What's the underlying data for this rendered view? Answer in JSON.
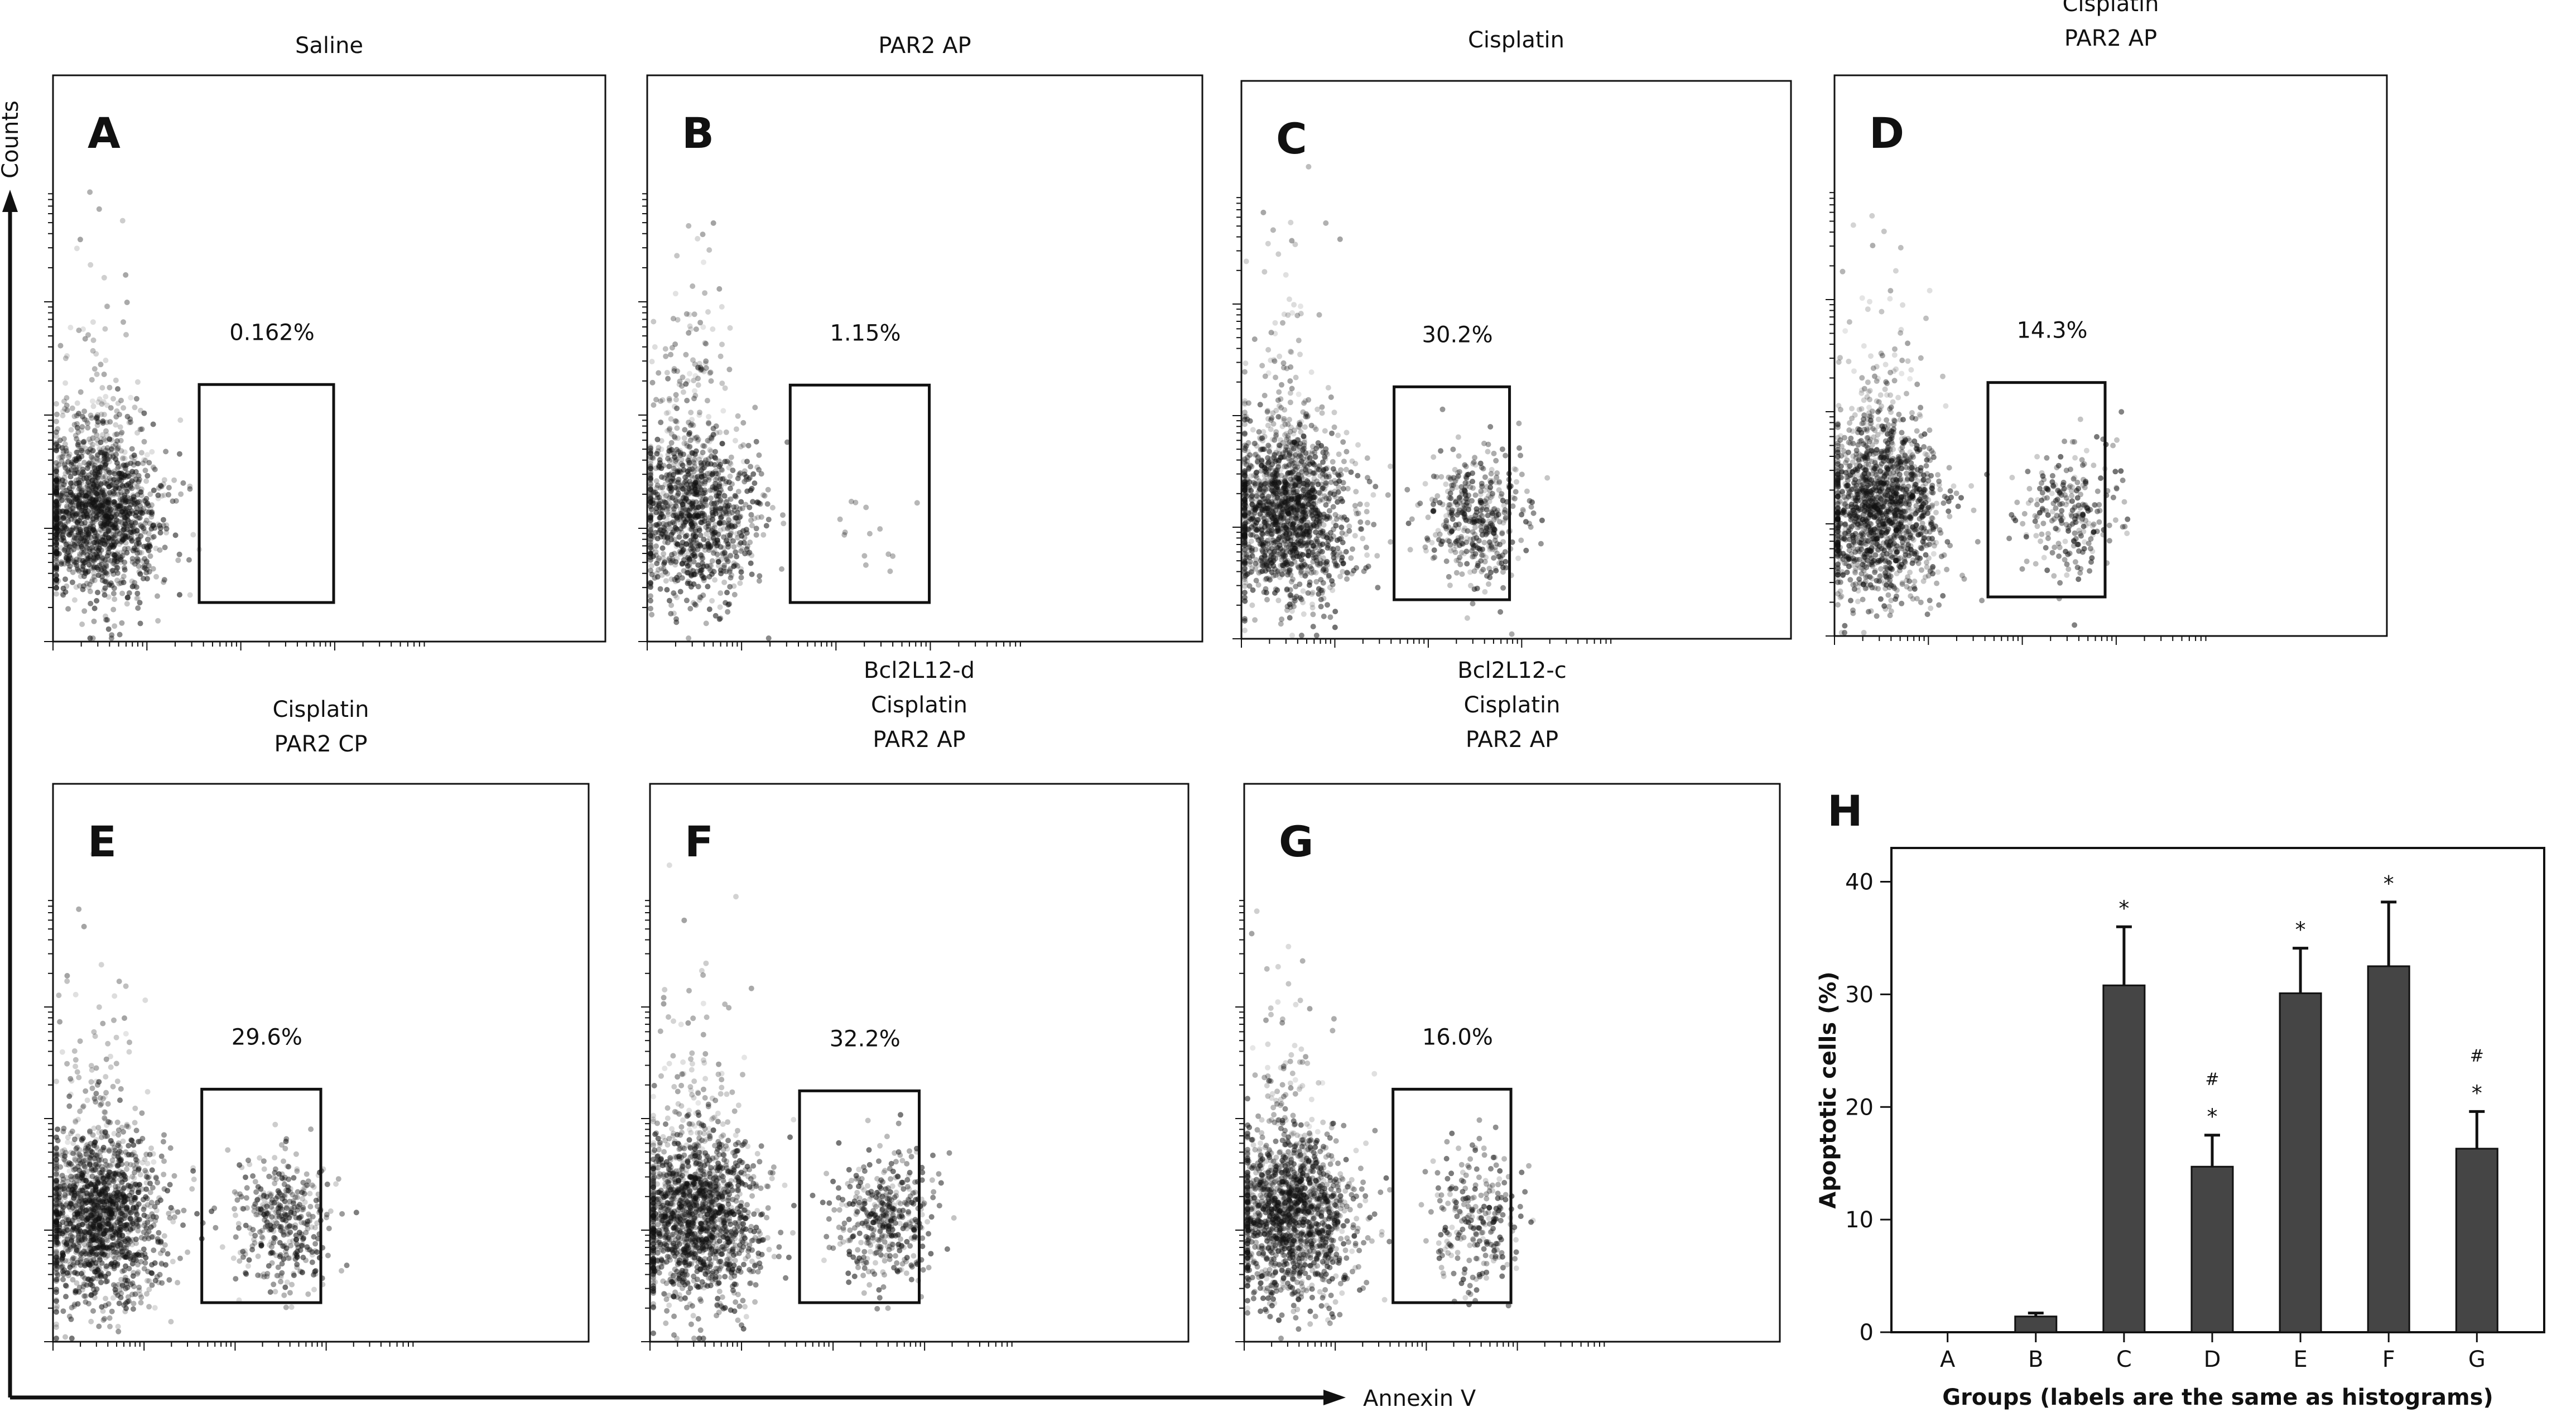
{
  "figure": {
    "axes": {
      "y_label": "Counts",
      "x_label": "Annexin V"
    }
  },
  "panels": [
    {
      "letter": "A",
      "conditions": [
        "Saline"
      ],
      "percent": "0.162%"
    },
    {
      "letter": "B",
      "conditions": [
        "PAR2 AP"
      ],
      "percent": "1.15%"
    },
    {
      "letter": "C",
      "conditions": [
        "Cisplatin"
      ],
      "percent": "30.2%"
    },
    {
      "letter": "D",
      "conditions": [
        "Cisplatin",
        "PAR2 AP"
      ],
      "percent": "14.3%"
    },
    {
      "letter": "E",
      "conditions": [
        "Cisplatin",
        "PAR2 CP"
      ],
      "percent": "29.6%"
    },
    {
      "letter": "F",
      "conditions": [
        "Bcl2L12-d",
        "Cisplatin",
        "PAR2 AP"
      ],
      "percent": "32.2%"
    },
    {
      "letter": "G",
      "conditions": [
        "Bcl2L12-c",
        "Cisplatin",
        "PAR2 AP"
      ],
      "percent": "16.0%"
    }
  ],
  "chart_data": {
    "type": "bar",
    "panel_letter": "H",
    "categories": [
      "A",
      "B",
      "C",
      "D",
      "E",
      "F",
      "G"
    ],
    "values": [
      0,
      1.4,
      30.8,
      14.7,
      30.1,
      32.5,
      16.3
    ],
    "errors": [
      0,
      0.3,
      5.2,
      2.8,
      4.0,
      5.7,
      3.3
    ],
    "significance_star": [
      "",
      "",
      "*",
      "*",
      "*",
      "*",
      "*"
    ],
    "significance_hash": [
      "",
      "",
      "",
      "#",
      "",
      "",
      "#"
    ],
    "xlabel": "Groups (labels are the same as histograms)",
    "ylabel": "Apoptotic cells (%)",
    "ylim": [
      0,
      43
    ],
    "yticks": [
      "0",
      "10",
      "20",
      "30",
      "40"
    ],
    "colors": {
      "bar": "#454545",
      "error": "#111111"
    }
  }
}
